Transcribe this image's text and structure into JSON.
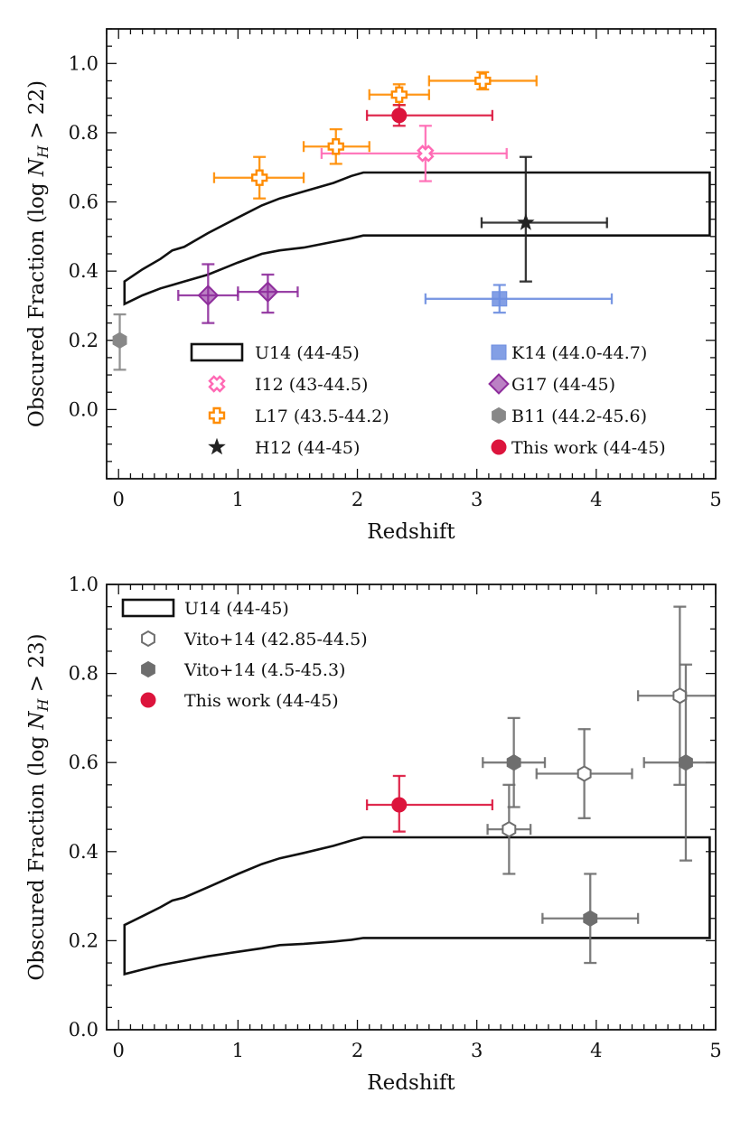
{
  "chart_data": [
    {
      "type": "scatter",
      "panel": "top",
      "xlabel": "Redshift",
      "ylabel": "Obscured Fraction (log N_H > 22)",
      "ylabel_parts": {
        "prefix": "Obscured Fraction (log ",
        "N": "N",
        "sub": "H",
        "suffix": " > 22)"
      },
      "xlim": [
        -0.1,
        5
      ],
      "ylim": [
        -0.2,
        1.1
      ],
      "x_ticks": [
        0,
        1,
        2,
        3,
        4,
        5
      ],
      "y_ticks": [
        0.0,
        0.2,
        0.4,
        0.6,
        0.8,
        1.0
      ],
      "x_tick_labels": [
        "0",
        "1",
        "2",
        "3",
        "4",
        "5"
      ],
      "y_tick_labels": [
        "0.0",
        "0.2",
        "0.4",
        "0.6",
        "0.8",
        "1.0"
      ],
      "legend_placement": "lower-center",
      "band": {
        "name": "U14 (44-45)",
        "x": [
          0.05,
          0.2,
          0.35,
          0.45,
          0.55,
          0.75,
          1.0,
          1.2,
          1.35,
          1.55,
          1.8,
          1.95,
          2.05,
          4.95
        ],
        "upper": [
          0.37,
          0.405,
          0.435,
          0.46,
          0.47,
          0.51,
          0.555,
          0.59,
          0.61,
          0.63,
          0.655,
          0.675,
          0.685,
          0.685
        ],
        "lower": [
          0.305,
          0.33,
          0.35,
          0.36,
          0.37,
          0.39,
          0.425,
          0.45,
          0.46,
          0.468,
          0.485,
          0.495,
          0.503,
          0.503
        ]
      },
      "series": [
        {
          "name": "I12 (43-44.5)",
          "marker": "x-cross-open",
          "color": "#ff69b4",
          "points": [
            {
              "x": 2.57,
              "y": 0.74,
              "xerr": [
                0.87,
                0.68
              ],
              "yerr": [
                0.08,
                0.08
              ]
            }
          ]
        },
        {
          "name": "L17 (43.5-44.2)",
          "marker": "plus-open",
          "color": "#ff8c00",
          "points": [
            {
              "x": 1.18,
              "y": 0.67,
              "xerr": [
                0.38,
                0.37
              ],
              "yerr": [
                0.06,
                0.06
              ]
            },
            {
              "x": 1.82,
              "y": 0.76,
              "xerr": [
                0.27,
                0.28
              ],
              "yerr": [
                0.05,
                0.05
              ]
            },
            {
              "x": 2.35,
              "y": 0.91,
              "xerr": [
                0.25,
                0.25
              ],
              "yerr": [
                0.03,
                0.03
              ]
            },
            {
              "x": 3.05,
              "y": 0.95,
              "xerr": [
                0.45,
                0.45
              ],
              "yerr": [
                0.025,
                0.025
              ]
            }
          ]
        },
        {
          "name": "H12 (44-45)",
          "marker": "star",
          "color": "#222222",
          "points": [
            {
              "x": 3.41,
              "y": 0.54,
              "xerr": [
                0.37,
                0.68
              ],
              "yerr": [
                0.17,
                0.19
              ]
            }
          ]
        },
        {
          "name": "K14 (44.0-44.7)",
          "marker": "square",
          "color": "#6d8ee0",
          "points": [
            {
              "x": 3.19,
              "y": 0.32,
              "xerr": [
                0.62,
                0.94
              ],
              "yerr": [
                0.04,
                0.04
              ]
            }
          ]
        },
        {
          "name": "G17 (44-45)",
          "marker": "diamond",
          "color": "#8e2d9c",
          "points": [
            {
              "x": 0.75,
              "y": 0.33,
              "xerr": [
                0.25,
                0.25
              ],
              "yerr": [
                0.08,
                0.09
              ]
            },
            {
              "x": 1.25,
              "y": 0.34,
              "xerr": [
                0.25,
                0.25
              ],
              "yerr": [
                0.06,
                0.05
              ]
            }
          ]
        },
        {
          "name": "B11 (44.2-45.6)",
          "marker": "hexagon",
          "color": "#888888",
          "points": [
            {
              "x": 0.01,
              "y": 0.2,
              "xerr": [
                0,
                0
              ],
              "yerr": [
                0.085,
                0.075
              ]
            }
          ]
        },
        {
          "name": "This work (44-45)",
          "marker": "circle",
          "color": "#dc143c",
          "points": [
            {
              "x": 2.35,
              "y": 0.85,
              "xerr": [
                0.27,
                0.78
              ],
              "yerr": [
                0.03,
                0.03
              ]
            }
          ]
        }
      ],
      "legend_order": [
        "U14 (44-45)",
        "I12 (43-44.5)",
        "L17 (43.5-44.2)",
        "H12 (44-45)",
        "K14 (44.0-44.7)",
        "G17 (44-45)",
        "B11 (44.2-45.6)",
        "This work (44-45)"
      ]
    },
    {
      "type": "scatter",
      "panel": "bottom",
      "xlabel": "Redshift",
      "ylabel": "Obscured Fraction (log N_H > 23)",
      "ylabel_parts": {
        "prefix": "Obscured Fraction (log ",
        "N": "N",
        "sub": "H",
        "suffix": " > 23)"
      },
      "xlim": [
        -0.1,
        5
      ],
      "ylim": [
        0.0,
        1.0
      ],
      "x_ticks": [
        0,
        1,
        2,
        3,
        4,
        5
      ],
      "y_ticks": [
        0.0,
        0.2,
        0.4,
        0.6,
        0.8,
        1.0
      ],
      "x_tick_labels": [
        "0",
        "1",
        "2",
        "3",
        "4",
        "5"
      ],
      "y_tick_labels": [
        "0.0",
        "0.2",
        "0.4",
        "0.6",
        "0.8",
        "1.0"
      ],
      "legend_placement": "top-left",
      "band": {
        "name": "U14 (44-45)",
        "x": [
          0.05,
          0.2,
          0.35,
          0.45,
          0.55,
          0.75,
          1.0,
          1.2,
          1.35,
          1.55,
          1.8,
          1.95,
          2.05,
          4.95
        ],
        "upper": [
          0.235,
          0.255,
          0.275,
          0.29,
          0.297,
          0.32,
          0.35,
          0.372,
          0.385,
          0.397,
          0.413,
          0.425,
          0.432,
          0.432
        ],
        "lower": [
          0.125,
          0.135,
          0.145,
          0.15,
          0.155,
          0.165,
          0.175,
          0.183,
          0.19,
          0.193,
          0.198,
          0.202,
          0.206,
          0.206
        ]
      },
      "series": [
        {
          "name": "Vito+14 (42.85-44.5)",
          "marker": "hexagon-open",
          "color": "#6e6e6e",
          "points": [
            {
              "x": 3.27,
              "y": 0.45,
              "xerr": [
                0.18,
                0.18
              ],
              "yerr": [
                0.1,
                0.1
              ]
            },
            {
              "x": 3.9,
              "y": 0.575,
              "xerr": [
                0.4,
                0.4
              ],
              "yerr": [
                0.1,
                0.1
              ]
            },
            {
              "x": 4.7,
              "y": 0.75,
              "xerr": [
                0.35,
                0.35
              ],
              "yerr": [
                0.2,
                0.2
              ]
            }
          ]
        },
        {
          "name": "Vito+14 (4.5-45.3)",
          "marker": "hexagon",
          "color": "#6e6e6e",
          "points": [
            {
              "x": 3.31,
              "y": 0.6,
              "xerr": [
                0.26,
                0.26
              ],
              "yerr": [
                0.1,
                0.1
              ]
            },
            {
              "x": 3.95,
              "y": 0.25,
              "xerr": [
                0.4,
                0.4
              ],
              "yerr": [
                0.1,
                0.1
              ]
            },
            {
              "x": 4.75,
              "y": 0.6,
              "xerr": [
                0.35,
                0.35
              ],
              "yerr": [
                0.22,
                0.22
              ]
            }
          ]
        },
        {
          "name": "This work (44-45)",
          "marker": "circle",
          "color": "#dc143c",
          "points": [
            {
              "x": 2.35,
              "y": 0.505,
              "xerr": [
                0.27,
                0.78
              ],
              "yerr": [
                0.06,
                0.065
              ]
            }
          ]
        }
      ],
      "legend_order": [
        "U14 (44-45)",
        "Vito+14 (42.85-44.5)",
        "Vito+14 (4.5-45.3)",
        "This work (44-45)"
      ]
    }
  ]
}
